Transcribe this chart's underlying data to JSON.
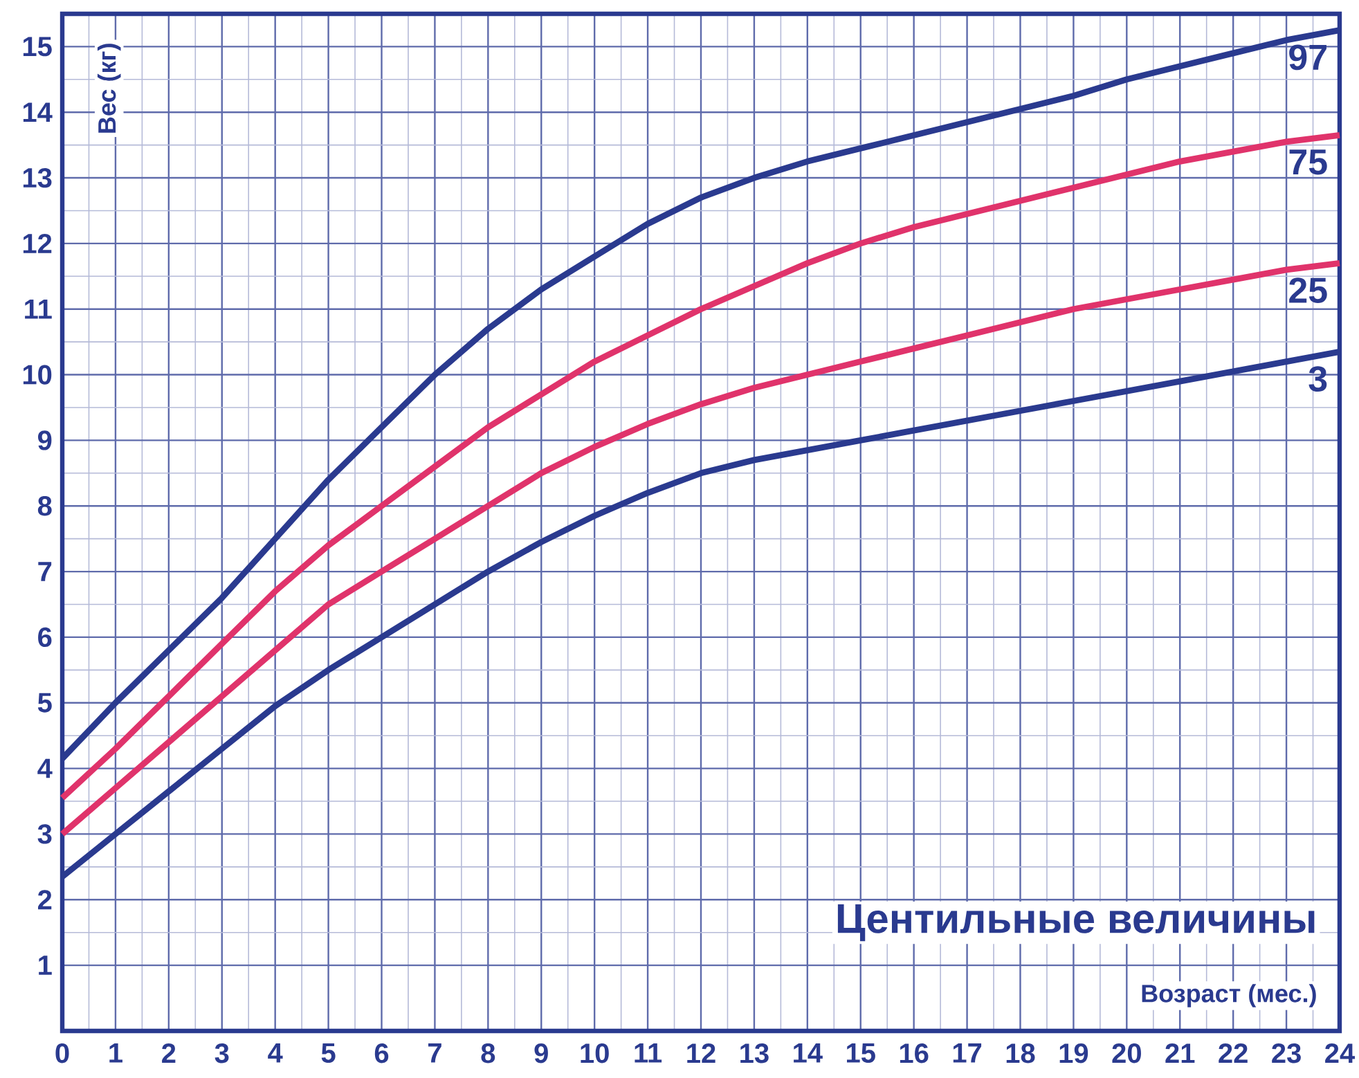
{
  "chart_data": {
    "type": "line",
    "xlabel": "Возраст (мес.)",
    "ylabel": "Вес (кг)",
    "annotations": [
      "Центильные величины"
    ],
    "x": [
      0,
      1,
      2,
      3,
      4,
      5,
      6,
      7,
      8,
      9,
      10,
      11,
      12,
      13,
      14,
      15,
      16,
      17,
      18,
      19,
      20,
      21,
      22,
      23,
      24
    ],
    "series": [
      {
        "name": "97",
        "color": "#2a3a8f",
        "values": [
          4.15,
          5.0,
          5.8,
          6.6,
          7.5,
          8.4,
          9.2,
          10.0,
          10.7,
          11.3,
          11.8,
          12.3,
          12.7,
          13.0,
          13.25,
          13.45,
          13.65,
          13.85,
          14.05,
          14.25,
          14.5,
          14.7,
          14.9,
          15.1,
          15.25
        ]
      },
      {
        "name": "75",
        "color": "#e0336b",
        "values": [
          3.55,
          4.3,
          5.1,
          5.9,
          6.7,
          7.4,
          8.0,
          8.6,
          9.2,
          9.7,
          10.2,
          10.6,
          11.0,
          11.35,
          11.7,
          12.0,
          12.25,
          12.45,
          12.65,
          12.85,
          13.05,
          13.25,
          13.4,
          13.55,
          13.65
        ]
      },
      {
        "name": "25",
        "color": "#e0336b",
        "values": [
          3.0,
          3.7,
          4.4,
          5.1,
          5.8,
          6.5,
          7.0,
          7.5,
          8.0,
          8.5,
          8.9,
          9.25,
          9.55,
          9.8,
          10.0,
          10.2,
          10.4,
          10.6,
          10.8,
          11.0,
          11.15,
          11.3,
          11.45,
          11.6,
          11.7
        ]
      },
      {
        "name": "3",
        "color": "#2a3a8f",
        "values": [
          2.35,
          3.0,
          3.65,
          4.3,
          4.95,
          5.5,
          6.0,
          6.5,
          7.0,
          7.45,
          7.85,
          8.2,
          8.5,
          8.7,
          8.85,
          9.0,
          9.15,
          9.3,
          9.45,
          9.6,
          9.75,
          9.9,
          10.05,
          10.2,
          10.35
        ]
      }
    ],
    "xlim": [
      0,
      24
    ],
    "ylim": [
      0,
      15.5
    ],
    "xticks": [
      0,
      1,
      2,
      3,
      4,
      5,
      6,
      7,
      8,
      9,
      10,
      11,
      12,
      13,
      14,
      15,
      16,
      17,
      18,
      19,
      20,
      21,
      22,
      23,
      24
    ],
    "yticks": [
      1,
      2,
      3,
      4,
      5,
      6,
      7,
      8,
      9,
      10,
      11,
      12,
      13,
      14,
      15
    ],
    "grid": true,
    "legend": false,
    "marker": "none",
    "line_style": "solid"
  }
}
